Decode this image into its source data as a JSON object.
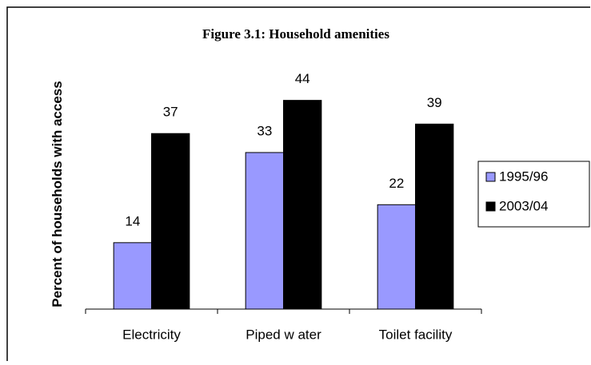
{
  "chart_data": {
    "type": "bar",
    "title": "Figure 3.1: Household amenities",
    "y_label": "Percent of households with access",
    "categories": [
      "Electricity",
      "Piped w ater",
      "Toilet facility"
    ],
    "series": [
      {
        "name": "1995/96",
        "color": "#9999ff",
        "values": [
          14,
          33,
          22
        ]
      },
      {
        "name": "2003/04",
        "color": "#000000",
        "values": [
          37,
          44,
          39
        ]
      }
    ],
    "ylim": [
      0,
      50
    ],
    "legend": "right"
  }
}
